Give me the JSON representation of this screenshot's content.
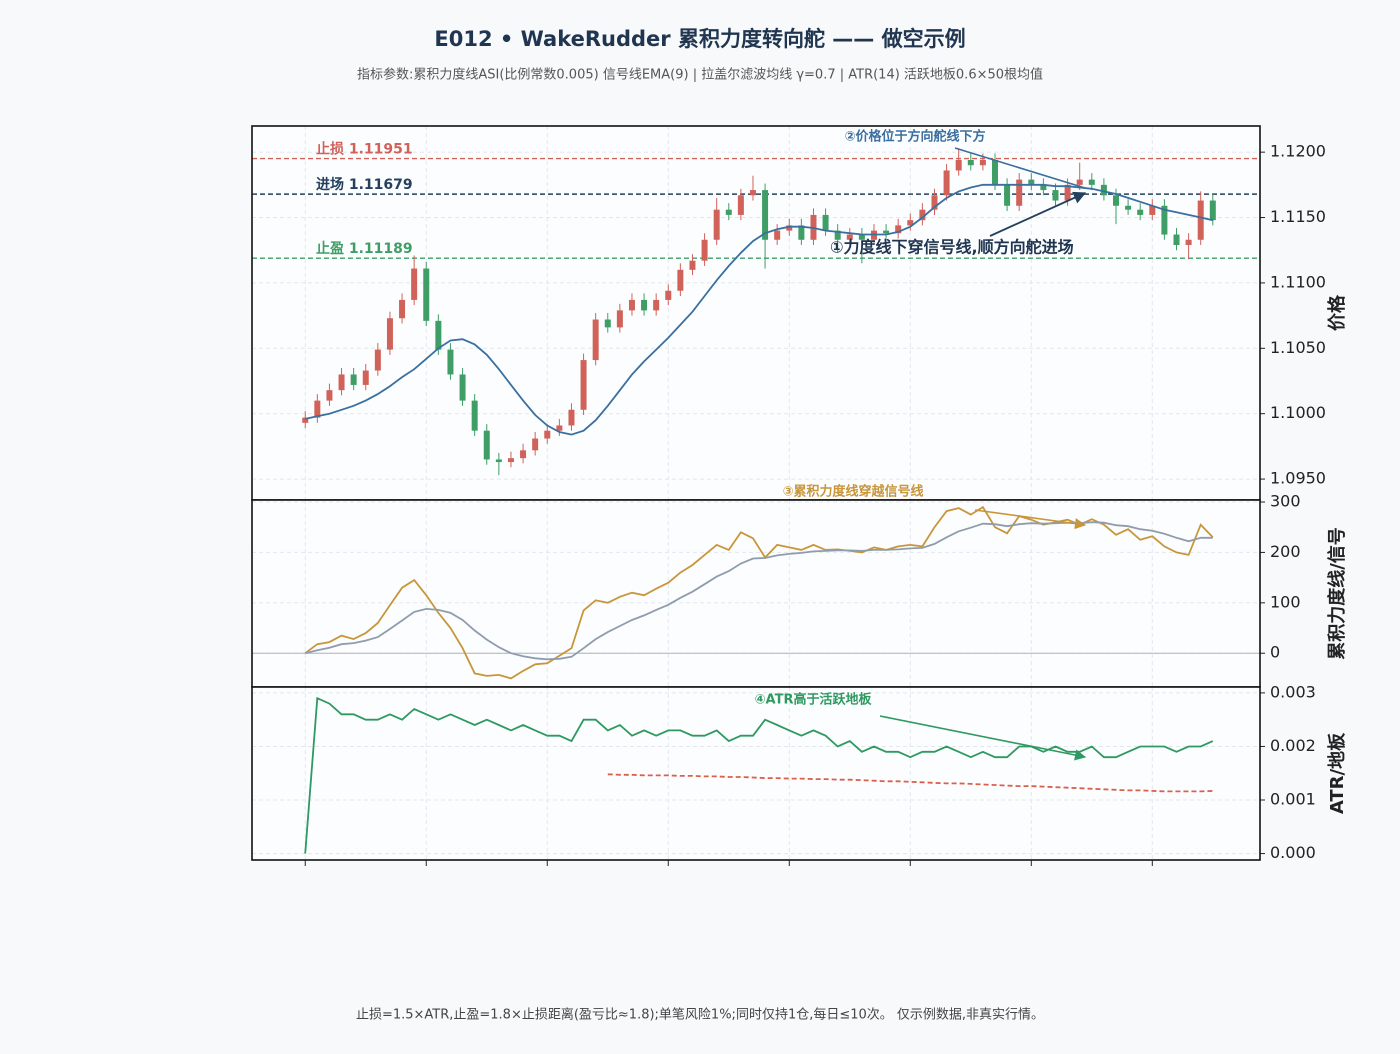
{
  "title": "E012 • WakeRudder 累积力度转向舵 —— 做空示例",
  "subtitle": "指标参数:累积力度线ASI(比例常数0.005) 信号线EMA(9) | 拉盖尔滤波均线 γ=0.7 | ATR(14) 活跃地板0.6×50根均值",
  "footer": "止损=1.5×ATR,止盈=1.8×止损距离(盈亏比≈1.8);单笔风险1%;同时仅持1仓,每日≤10次。   仅示例数据,非真实行情。",
  "chart_data": [
    {
      "type": "candlestick",
      "ylabel": "价格",
      "up_color": "#d0625a",
      "down_color": "#3f9e66",
      "xlim": [
        -4.4,
        78.9
      ],
      "xticks": [
        0,
        10,
        20,
        30,
        40,
        50,
        60,
        70
      ],
      "ylim": [
        1.0934,
        1.122
      ],
      "yticks": [
        {
          "value": 1.095,
          "label": "1.0950"
        },
        {
          "value": 1.1,
          "label": "1.1000"
        },
        {
          "value": 1.105,
          "label": "1.1050"
        },
        {
          "value": 1.11,
          "label": "1.1100"
        },
        {
          "value": 1.115,
          "label": "1.1150"
        },
        {
          "value": 1.12,
          "label": "1.1200"
        }
      ],
      "grid": true,
      "open": [
        1.0993,
        1.0997,
        1.101,
        1.1018,
        1.103,
        1.1022,
        1.1033,
        1.1049,
        1.1073,
        1.1087,
        1.1111,
        1.1071,
        1.1049,
        1.103,
        1.101,
        1.0987,
        1.0965,
        1.0963,
        1.0966,
        1.0972,
        1.0981,
        1.0987,
        1.0991,
        1.1003,
        1.1041,
        1.1072,
        1.1066,
        1.1079,
        1.1087,
        1.1079,
        1.1087,
        1.1094,
        1.111,
        1.1117,
        1.1133,
        1.1156,
        1.1152,
        1.1167,
        1.1171,
        1.1133,
        1.114,
        1.1144,
        1.1133,
        1.1152,
        1.114,
        1.1133,
        1.1137,
        1.1133,
        1.114,
        1.1138,
        1.1144,
        1.1148,
        1.1156,
        1.1167,
        1.1186,
        1.1194,
        1.119,
        1.1194,
        1.1175,
        1.1159,
        1.1179,
        1.1175,
        1.1171,
        1.1163,
        1.1175,
        1.1179,
        1.1175,
        1.1167,
        1.1159,
        1.1156,
        1.1152,
        1.1159,
        1.1137,
        1.1129,
        1.1133,
        1.1163
      ],
      "high": [
        1.1002,
        1.1015,
        1.1023,
        1.1035,
        1.1035,
        1.1038,
        1.1054,
        1.1078,
        1.1092,
        1.1121,
        1.1116,
        1.1076,
        1.1054,
        1.1035,
        1.1015,
        1.0992,
        1.097,
        1.0971,
        1.0977,
        1.0986,
        1.0992,
        1.0996,
        1.1008,
        1.1046,
        1.1077,
        1.1077,
        1.1084,
        1.1092,
        1.1092,
        1.1092,
        1.1099,
        1.1115,
        1.1122,
        1.1138,
        1.1165,
        1.1161,
        1.1172,
        1.1182,
        1.1176,
        1.1145,
        1.1149,
        1.1149,
        1.1157,
        1.1157,
        1.1145,
        1.1142,
        1.1142,
        1.1145,
        1.1145,
        1.1149,
        1.1153,
        1.1161,
        1.1172,
        1.1191,
        1.1203,
        1.1199,
        1.1199,
        1.1199,
        1.118,
        1.1184,
        1.1184,
        1.118,
        1.1176,
        1.118,
        1.1192,
        1.1184,
        1.118,
        1.1172,
        1.1164,
        1.1161,
        1.1164,
        1.1164,
        1.1142,
        1.1138,
        1.117,
        1.1168
      ],
      "low": [
        1.0989,
        1.0993,
        1.1006,
        1.1014,
        1.1018,
        1.1018,
        1.1029,
        1.1045,
        1.1069,
        1.1083,
        1.1067,
        1.1045,
        1.1026,
        1.1006,
        1.0983,
        1.0961,
        1.0953,
        1.0959,
        1.0962,
        1.0968,
        1.0977,
        1.0983,
        1.0987,
        1.0999,
        1.1037,
        1.1062,
        1.1062,
        1.1075,
        1.1075,
        1.1075,
        1.1083,
        1.109,
        1.1106,
        1.1113,
        1.1129,
        1.1148,
        1.1148,
        1.1163,
        1.1111,
        1.1129,
        1.1136,
        1.1129,
        1.1129,
        1.1136,
        1.1123,
        1.1129,
        1.1115,
        1.1129,
        1.1134,
        1.1134,
        1.114,
        1.1144,
        1.1152,
        1.1163,
        1.1182,
        1.1186,
        1.1186,
        1.1171,
        1.1155,
        1.1155,
        1.1171,
        1.1167,
        1.1159,
        1.1159,
        1.1171,
        1.1171,
        1.1163,
        1.1145,
        1.1152,
        1.1148,
        1.1148,
        1.1133,
        1.1125,
        1.1118,
        1.1129,
        1.1144
      ],
      "close": [
        1.0997,
        1.101,
        1.1018,
        1.103,
        1.1022,
        1.1033,
        1.1049,
        1.1073,
        1.1087,
        1.1111,
        1.1071,
        1.1049,
        1.103,
        1.101,
        1.0987,
        1.0965,
        1.0963,
        1.0966,
        1.0972,
        1.0981,
        1.0987,
        1.0991,
        1.1003,
        1.1041,
        1.1072,
        1.1066,
        1.1079,
        1.1087,
        1.1079,
        1.1087,
        1.1094,
        1.111,
        1.1117,
        1.1133,
        1.1156,
        1.1152,
        1.1167,
        1.1171,
        1.1133,
        1.114,
        1.1144,
        1.1133,
        1.1152,
        1.114,
        1.1133,
        1.1137,
        1.1133,
        1.114,
        1.1138,
        1.1144,
        1.1148,
        1.1156,
        1.1167,
        1.1186,
        1.1194,
        1.119,
        1.1194,
        1.1175,
        1.1159,
        1.1179,
        1.1175,
        1.1171,
        1.1163,
        1.1175,
        1.1179,
        1.1175,
        1.1167,
        1.1159,
        1.1156,
        1.1152,
        1.1159,
        1.1137,
        1.1129,
        1.1133,
        1.1163,
        1.1148
      ],
      "lines": [
        {
          "color": "#3a6f9e",
          "values": [
            1.0996,
            1.0998,
            1.1,
            1.1003,
            1.1006,
            1.101,
            1.1015,
            1.1021,
            1.1028,
            1.1034,
            1.1042,
            1.105,
            1.1056,
            1.1057,
            1.1053,
            1.1045,
            1.1034,
            1.1022,
            1.101,
            1.0999,
            1.0991,
            1.0986,
            1.0984,
            1.0987,
            1.0995,
            1.1006,
            1.1018,
            1.103,
            1.104,
            1.1049,
            1.1058,
            1.1068,
            1.1078,
            1.109,
            1.1102,
            1.1113,
            1.1123,
            1.1132,
            1.1138,
            1.1141,
            1.1143,
            1.1143,
            1.1142,
            1.114,
            1.1139,
            1.1138,
            1.1137,
            1.1137,
            1.1137,
            1.1139,
            1.1143,
            1.115,
            1.1158,
            1.1165,
            1.117,
            1.1173,
            1.1175,
            1.1175,
            1.1175,
            1.1175,
            1.1175,
            1.1175,
            1.1174,
            1.1174,
            1.1173,
            1.1172,
            1.117,
            1.1168,
            1.1165,
            1.1162,
            1.1159,
            1.1156,
            1.1154,
            1.1152,
            1.115,
            1.1148
          ]
        }
      ],
      "levels": [
        {
          "label": "止损 1.11951",
          "value": 1.11951,
          "color": "#d0625a"
        },
        {
          "label": "进场 1.11679",
          "value": 1.11679,
          "color": "#24405e"
        },
        {
          "label": "止盈 1.11189",
          "value": 1.11189,
          "color": "#3f9e66"
        }
      ],
      "annotations": [
        "②价格位于方向舵线下方",
        "①力度线下穿信号线,顺方向舵进场"
      ]
    },
    {
      "type": "line",
      "ylabel": "累积力度线/信号",
      "xlim": [
        -4.4,
        78.9
      ],
      "ylim": [
        -67,
        304
      ],
      "yticks": [
        0,
        100,
        200,
        300
      ],
      "grid": true,
      "zero_line": 0,
      "series": [
        {
          "color": "#c8963a",
          "values": [
            0,
            18,
            22,
            35,
            28,
            40,
            60,
            95,
            130,
            145,
            115,
            80,
            50,
            10,
            -40,
            -45,
            -43,
            -50,
            -35,
            -22,
            -20,
            -5,
            10,
            85,
            105,
            100,
            112,
            120,
            115,
            128,
            140,
            160,
            175,
            195,
            215,
            205,
            240,
            228,
            190,
            215,
            210,
            205,
            215,
            205,
            206,
            203,
            200,
            210,
            205,
            212,
            215,
            212,
            250,
            282,
            288,
            275,
            290,
            250,
            238,
            272,
            265,
            255,
            260,
            265,
            255,
            266,
            255,
            235,
            246,
            225,
            232,
            212,
            200,
            195,
            255,
            230
          ]
        },
        {
          "color": "#8f9cad",
          "values": [
            0,
            6,
            11,
            18,
            20,
            25,
            32,
            48,
            65,
            82,
            88,
            86,
            80,
            66,
            45,
            27,
            12,
            0,
            -6,
            -10,
            -12,
            -11,
            -7,
            10,
            28,
            42,
            54,
            66,
            75,
            86,
            96,
            110,
            122,
            137,
            152,
            163,
            178,
            188,
            189,
            194,
            197,
            199,
            202,
            203,
            204,
            204,
            203,
            205,
            205,
            206,
            208,
            209,
            217,
            230,
            242,
            249,
            257,
            256,
            252,
            256,
            258,
            257,
            258,
            259,
            258,
            260,
            259,
            254,
            252,
            246,
            243,
            237,
            229,
            222,
            229,
            229
          ]
        }
      ],
      "annotations": [
        "③累积力度线穿越信号线"
      ]
    },
    {
      "type": "line",
      "ylabel": "ATR/地板",
      "xlim": [
        -4.4,
        78.9
      ],
      "xticks": [
        0,
        10,
        20,
        30,
        40,
        50,
        60,
        70
      ],
      "ylim": [
        -0.00012,
        0.00311
      ],
      "yticks": [
        {
          "value": 0,
          "label": "0.000"
        },
        {
          "value": 0.001,
          "label": "0.001"
        },
        {
          "value": 0.002,
          "label": "0.002"
        },
        {
          "value": 0.003,
          "label": "0.003"
        }
      ],
      "grid": true,
      "series": [
        {
          "color": "#2e9960",
          "dashed": false,
          "values": [
            0,
            0.0029,
            0.0028,
            0.0026,
            0.0026,
            0.0025,
            0.0025,
            0.0026,
            0.0025,
            0.0027,
            0.0026,
            0.0025,
            0.0026,
            0.0025,
            0.0024,
            0.0025,
            0.0024,
            0.0023,
            0.0024,
            0.0023,
            0.0022,
            0.0022,
            0.0021,
            0.0025,
            0.0025,
            0.0023,
            0.0024,
            0.0022,
            0.0023,
            0.0022,
            0.0023,
            0.0023,
            0.0022,
            0.0022,
            0.0023,
            0.0021,
            0.0022,
            0.0022,
            0.0025,
            0.0024,
            0.0023,
            0.0022,
            0.0023,
            0.0022,
            0.002,
            0.0021,
            0.0019,
            0.002,
            0.0019,
            0.0019,
            0.0018,
            0.0019,
            0.0019,
            0.002,
            0.0019,
            0.0018,
            0.0019,
            0.0018,
            0.0018,
            0.002,
            0.002,
            0.0019,
            0.002,
            0.0019,
            0.0019,
            0.002,
            0.0018,
            0.0018,
            0.0019,
            0.002,
            0.002,
            0.002,
            0.0019,
            0.002,
            0.002,
            0.0021
          ]
        },
        {
          "color": "#d9604e",
          "dashed": true,
          "values": [
            null,
            null,
            null,
            null,
            null,
            null,
            null,
            null,
            null,
            null,
            null,
            null,
            null,
            null,
            null,
            null,
            null,
            null,
            null,
            null,
            null,
            null,
            null,
            null,
            null,
            0.00148,
            0.00147,
            0.00147,
            0.00146,
            0.00146,
            0.00146,
            0.00145,
            0.00145,
            0.00144,
            0.00144,
            0.00143,
            0.00143,
            0.00142,
            0.00141,
            0.00141,
            0.0014,
            0.0014,
            0.00139,
            0.00139,
            0.00138,
            0.00138,
            0.00137,
            0.00136,
            0.00135,
            0.00135,
            0.00134,
            0.00133,
            0.00132,
            0.00131,
            0.00131,
            0.0013,
            0.00129,
            0.00128,
            0.00127,
            0.00126,
            0.00126,
            0.00125,
            0.00124,
            0.00123,
            0.00122,
            0.00121,
            0.0012,
            0.00119,
            0.00118,
            0.00118,
            0.00117,
            0.00116,
            0.00116,
            0.00116,
            0.00116,
            0.00117
          ]
        }
      ],
      "annotations": [
        "④ATR高于活跃地板"
      ]
    }
  ]
}
